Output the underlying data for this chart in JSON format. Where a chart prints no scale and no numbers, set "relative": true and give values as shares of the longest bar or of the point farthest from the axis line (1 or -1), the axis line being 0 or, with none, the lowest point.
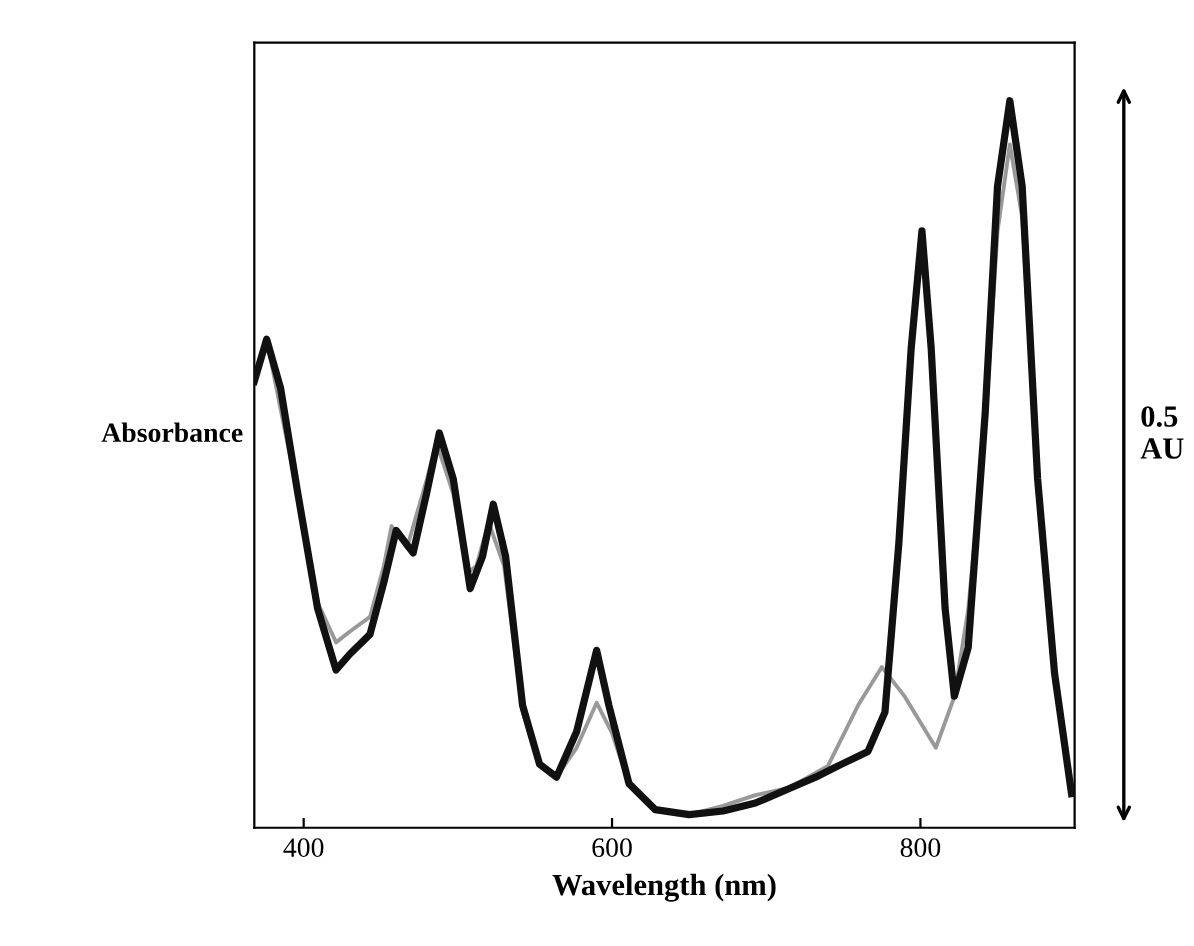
{
  "chart_data": {
    "type": "line",
    "relative": true,
    "xlabel": "Wavelength (nm)",
    "ylabel": "Absorbance",
    "annotations": [
      "0.5\nAU"
    ],
    "xlim": [
      368,
      900
    ],
    "xticks": [
      400,
      600,
      800
    ],
    "tick_labels": "x",
    "grid": false,
    "legend": false,
    "marker": "none",
    "line_style": "solid",
    "series": [
      {
        "color": "#999999",
        "x": [
          376,
          396,
          409,
          421,
          430,
          443,
          452,
          457,
          467,
          480,
          486,
          497,
          506,
          512,
          520,
          530,
          542,
          553,
          564,
          577,
          590,
          600,
          611,
          628,
          650,
          672,
          693,
          715,
          740,
          760,
          775,
          790,
          810,
          822,
          831,
          842,
          850,
          858,
          866,
          876,
          887,
          898
        ],
        "values": [
          0.672,
          0.46,
          0.31,
          0.255,
          0.27,
          0.29,
          0.36,
          0.415,
          0.385,
          0.48,
          0.53,
          0.46,
          0.35,
          0.36,
          0.42,
          0.36,
          0.16,
          0.085,
          0.07,
          0.11,
          0.172,
          0.13,
          0.06,
          0.025,
          0.018,
          0.03,
          0.045,
          0.055,
          0.085,
          0.17,
          0.221,
          0.18,
          0.11,
          0.18,
          0.3,
          0.55,
          0.82,
          0.94,
          0.84,
          0.47,
          0.2,
          0.047
        ]
      },
      {
        "color": "#111111",
        "x": [
          368,
          376,
          385,
          396,
          409,
          421,
          430,
          443,
          452,
          460,
          471,
          480,
          488,
          497,
          508,
          516,
          523,
          531,
          542,
          553,
          564,
          577,
          590,
          598,
          611,
          628,
          650,
          672,
          693,
          715,
          732,
          749,
          766,
          777,
          786,
          794,
          801,
          807,
          816,
          822,
          831,
          842,
          850,
          858,
          866,
          876,
          887,
          898
        ],
        "values": [
          0.614,
          0.672,
          0.605,
          0.4625,
          0.302,
          0.217,
          0.239,
          0.266,
          0.3375,
          0.409,
          0.378,
          0.4625,
          0.543,
          0.48,
          0.329,
          0.373,
          0.445,
          0.373,
          0.168,
          0.0875,
          0.0696,
          0.132,
          0.244,
          0.168,
          0.0607,
          0.025,
          0.018,
          0.023,
          0.034,
          0.054,
          0.0696,
          0.0875,
          0.105,
          0.159,
          0.391,
          0.659,
          0.821,
          0.659,
          0.302,
          0.181,
          0.248,
          0.57,
          0.882,
          1.0,
          0.882,
          0.48,
          0.2125,
          0.047
        ]
      }
    ]
  }
}
